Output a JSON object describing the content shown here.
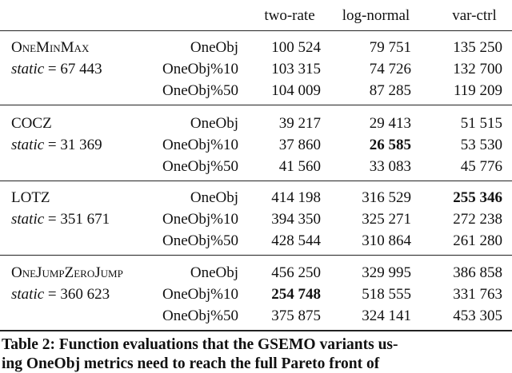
{
  "table": {
    "columns": [
      "two-rate",
      "log-normal",
      "var-ctrl"
    ],
    "groups": [
      {
        "name": "OneMinMax",
        "small_caps": true,
        "static": {
          "name": "static",
          "sign": "=",
          "value": "67 443"
        },
        "rows": [
          {
            "variant": "OneObj",
            "values": [
              "100 524",
              "79 751",
              "135 250"
            ]
          },
          {
            "variant": "OneObj%10",
            "values": [
              "103 315",
              "74 726",
              "132 700"
            ]
          },
          {
            "variant": "OneObj%50",
            "values": [
              "104 009",
              "87 285",
              "119 209"
            ]
          }
        ]
      },
      {
        "name": "COCZ",
        "small_caps": false,
        "static": {
          "name": "static",
          "sign": "=",
          "value": "31 369"
        },
        "rows": [
          {
            "variant": "OneObj",
            "values": [
              "39 217",
              "29 413",
              "51 515"
            ]
          },
          {
            "variant": "OneObj%10",
            "values": [
              "37 860",
              "26 585",
              "53 530"
            ],
            "bold": 1
          },
          {
            "variant": "OneObj%50",
            "values": [
              "41 560",
              "33 083",
              "45 776"
            ]
          }
        ]
      },
      {
        "name": "LOTZ",
        "small_caps": false,
        "static": {
          "name": "static",
          "sign": "=",
          "value": "351 671"
        },
        "rows": [
          {
            "variant": "OneObj",
            "values": [
              "414 198",
              "316 529",
              "255 346"
            ],
            "bold": 2
          },
          {
            "variant": "OneObj%10",
            "values": [
              "394 350",
              "325 271",
              "272 238"
            ]
          },
          {
            "variant": "OneObj%50",
            "values": [
              "428 544",
              "310 864",
              "261 280"
            ]
          }
        ]
      },
      {
        "name": "OneJumpZeroJump",
        "small_caps": true,
        "static": {
          "name": "static",
          "sign": "=",
          "value": "360 623"
        },
        "rows": [
          {
            "variant": "OneObj",
            "values": [
              "456 250",
              "329 995",
              "386 858"
            ]
          },
          {
            "variant": "OneObj%10",
            "values": [
              "254 748",
              "518 555",
              "331 763"
            ],
            "bold": 0
          },
          {
            "variant": "OneObj%50",
            "values": [
              "375 875",
              "324 141",
              "453 305"
            ]
          }
        ]
      }
    ]
  },
  "caption": [
    "Table 2: Function evaluations that the GSEMO variants us-",
    "ing OneObj metrics need to reach the full Pareto front of"
  ]
}
